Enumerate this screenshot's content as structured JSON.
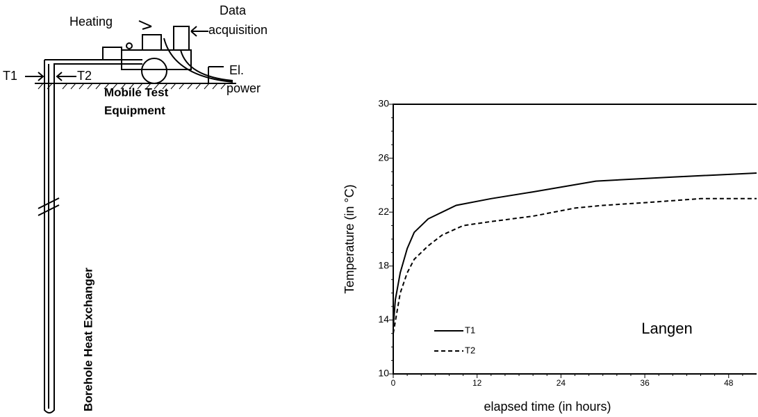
{
  "diagram": {
    "heating": "Heating",
    "data_acquisition": [
      "Data",
      "acquisition"
    ],
    "t1": "T1",
    "t2": "T2",
    "power": [
      "El.",
      "power"
    ],
    "equipment": [
      "Mobile Test",
      "Equipment"
    ],
    "exchanger": "Borehole Heat Exchanger"
  },
  "chart_data": {
    "type": "line",
    "xlabel": "elapsed time (in hours)",
    "ylabel": "Temperature (in °C)",
    "annotation": "Langen",
    "xlim": [
      0,
      52
    ],
    "xticks": [
      0,
      12,
      24,
      36,
      48
    ],
    "ylim": [
      10,
      30
    ],
    "yticks": [
      10,
      14,
      18,
      22,
      26,
      30
    ],
    "series": [
      {
        "name": "T1",
        "color": "#000000",
        "dash": "solid",
        "x": [
          0,
          0.3,
          1,
          2,
          3,
          5,
          9,
          14,
          20,
          29,
          40,
          52
        ],
        "values": [
          13.5,
          15.5,
          17.5,
          19.3,
          20.5,
          21.5,
          22.5,
          23,
          23.5,
          24.3,
          24.6,
          24.9
        ]
      },
      {
        "name": "T2",
        "color": "#000000",
        "dash": "dashed",
        "x": [
          0,
          0.5,
          1,
          2,
          3,
          5,
          7,
          10,
          14,
          20,
          26,
          30,
          36,
          44,
          52
        ],
        "values": [
          13,
          14.5,
          16,
          17.5,
          18.5,
          19.5,
          20.3,
          21,
          21.3,
          21.7,
          22.3,
          22.5,
          22.7,
          23,
          23
        ]
      }
    ]
  }
}
